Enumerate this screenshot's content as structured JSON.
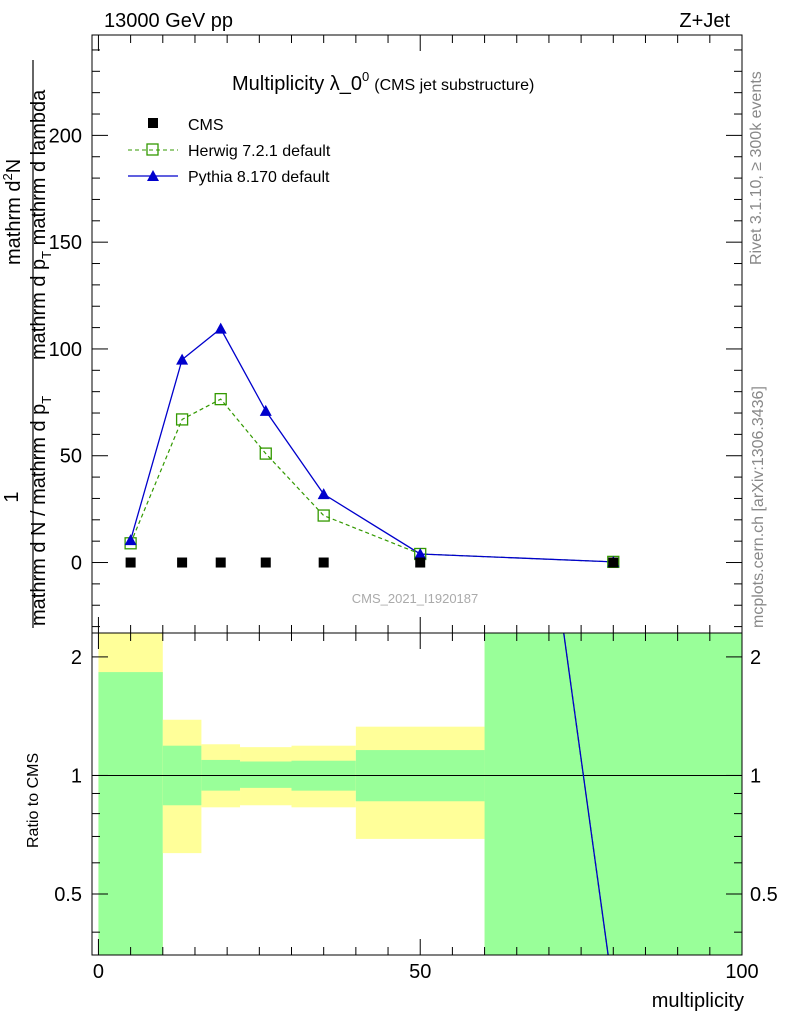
{
  "header": {
    "left": "13000 GeV pp",
    "right": "Z+Jet",
    "watermark": "CMS_2021_I1920187",
    "side_rivet": "Rivet 3.1.10, ≥ 300k events",
    "side_mcplots": "mcplots.cern.ch [arXiv:1306.3436]"
  },
  "chart_data": [
    {
      "type": "line",
      "title": "Multiplicity λ_0",
      "title_superscript": "0",
      "subtitle": "(CMS jet substructure)",
      "xlabel": "",
      "ylabel_numerator": "1",
      "ylabel_numerator2": "mathrm d",
      "ylabel_numerator_sup": "2",
      "ylabel_numerator3": "N",
      "ylabel_den_top_a": "mathrm d p",
      "ylabel_den_top_sub": "T",
      "ylabel_den_top_b": " mathrm d lambda",
      "ylabel_denominator_a": "mathrm d N / mathrm d p",
      "ylabel_denominator_sub": "T",
      "xlim": [
        -1,
        100
      ],
      "ylim": [
        -33,
        247
      ],
      "yticks": [
        0,
        50,
        100,
        150,
        200
      ],
      "legend_position": "top-left",
      "series": [
        {
          "name": "CMS",
          "style": "data",
          "color": "#000000",
          "x": [
            5,
            13,
            19,
            26,
            35,
            50,
            80
          ],
          "y": [
            0,
            0,
            0,
            0,
            0,
            0,
            0
          ]
        },
        {
          "name": "Herwig 7.2.1 default",
          "style": "dashed-open-square",
          "color": "#339900",
          "x": [
            5,
            13,
            19,
            26,
            35,
            50,
            80
          ],
          "y": [
            9,
            67,
            76.5,
            51,
            22,
            4,
            0.3
          ]
        },
        {
          "name": "Pythia 8.170 default",
          "style": "solid-triangle",
          "color": "#0000cc",
          "x": [
            5,
            13,
            19,
            26,
            35,
            50,
            80
          ],
          "y": [
            10.5,
            95,
            109.5,
            71,
            32,
            4,
            0.3
          ],
          "yerr": [
            0.5,
            2,
            2,
            1,
            0.5,
            0.2,
            0.1
          ]
        }
      ]
    },
    {
      "type": "area",
      "title": "",
      "xlabel": "multiplicity",
      "ylabel": "Ratio to CMS",
      "xlim": [
        -1,
        100
      ],
      "xticks": [
        0,
        50,
        100
      ],
      "ylim": [
        0.35,
        2.3
      ],
      "yticks": [
        0.5,
        1,
        2
      ],
      "ytick_labels": [
        "0.5",
        "1",
        "2"
      ],
      "reference": 1,
      "bands": [
        {
          "x0": 0,
          "x1": 10,
          "yellow_lo": 0.35,
          "yellow_hi": 2.3,
          "green_lo": 0.35,
          "green_hi": 1.83
        },
        {
          "x0": 10,
          "x1": 16,
          "yellow_lo": 0.635,
          "yellow_hi": 1.385,
          "green_lo": 0.84,
          "green_hi": 1.19
        },
        {
          "x0": 16,
          "x1": 22,
          "yellow_lo": 0.83,
          "yellow_hi": 1.2,
          "green_lo": 0.915,
          "green_hi": 1.095
        },
        {
          "x0": 22,
          "x1": 30,
          "yellow_lo": 0.84,
          "yellow_hi": 1.18,
          "green_lo": 0.93,
          "green_hi": 1.085
        },
        {
          "x0": 30,
          "x1": 40,
          "yellow_lo": 0.83,
          "yellow_hi": 1.19,
          "green_lo": 0.915,
          "green_hi": 1.09
        },
        {
          "x0": 40,
          "x1": 60,
          "yellow_lo": 0.69,
          "yellow_hi": 1.33,
          "green_lo": 0.86,
          "green_hi": 1.16
        },
        {
          "x0": 60,
          "x1": 100,
          "yellow_lo": 0.35,
          "yellow_hi": 2.3,
          "green_lo": 0.35,
          "green_hi": 2.3
        }
      ],
      "series": [
        {
          "name": "Herwig 7.2.1 default",
          "style": "dashed",
          "color": "#339900",
          "x": [
            72.3,
            79.2
          ],
          "y": [
            2.3,
            0.35
          ]
        },
        {
          "name": "Pythia 8.170 default",
          "style": "solid",
          "color": "#0000cc",
          "x": [
            72.3,
            79.2
          ],
          "y": [
            2.3,
            0.35
          ]
        }
      ]
    }
  ]
}
